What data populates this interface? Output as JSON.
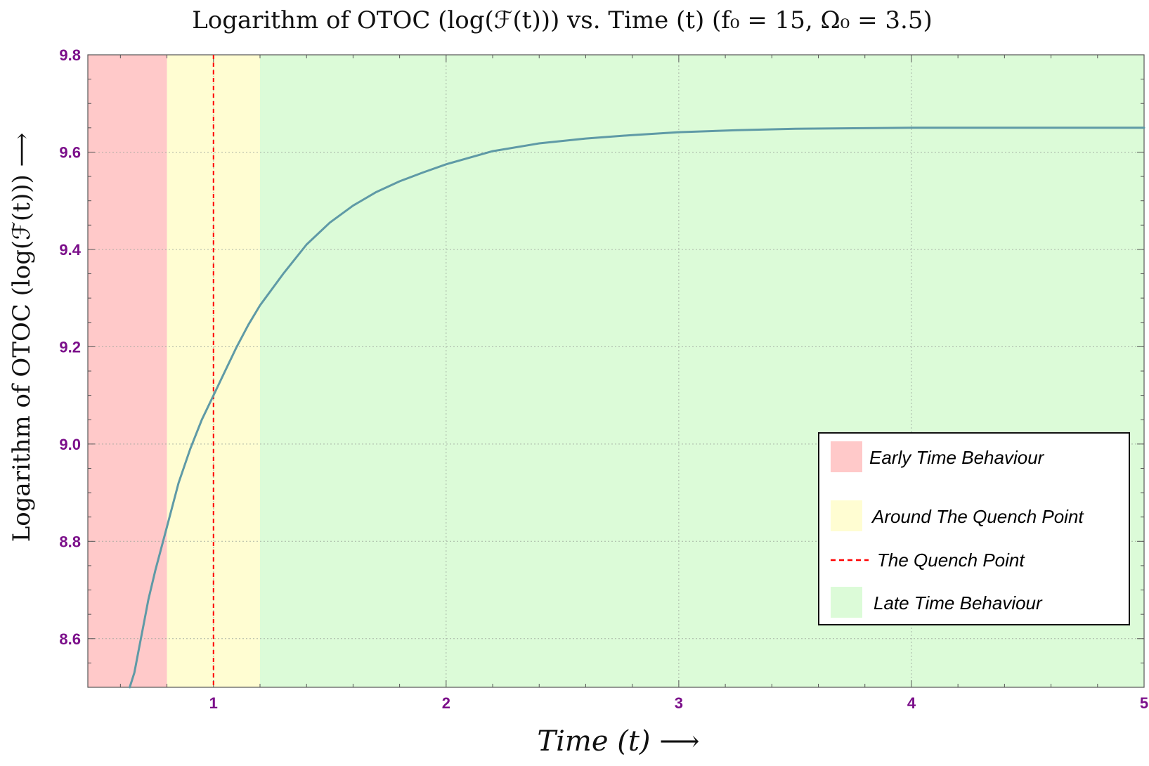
{
  "chart_data": {
    "type": "line",
    "title": "Logarithm of OTOC (log(ℱ(t))) vs. Time (t) (f₀ = 15, Ω₀ = 3.5)",
    "xlabel": "Time (t) ⟶",
    "ylabel": "Logarithm of OTOC (log(ℱ(t))) ⟶",
    "xlim": [
      0.46,
      5.0
    ],
    "ylim": [
      8.5,
      9.8
    ],
    "xticks": [
      "1",
      "2",
      "3",
      "4",
      "5"
    ],
    "xtick_values": [
      1,
      2,
      3,
      4,
      5
    ],
    "yticks": [
      "8.6",
      "8.8",
      "9.0",
      "9.2",
      "9.4",
      "9.6",
      "9.8"
    ],
    "ytick_values": [
      8.6,
      8.8,
      9.0,
      9.2,
      9.4,
      9.6,
      9.8
    ],
    "grid": true,
    "tick_color": "#7b0f8a",
    "regions": [
      {
        "name": "Early Time Behaviour",
        "x_range": [
          0.46,
          0.8
        ],
        "color": "#ffc9c9"
      },
      {
        "name": "Around The Quench Point",
        "x_range": [
          0.8,
          1.2
        ],
        "color": "#fffdd2"
      },
      {
        "name": "Late Time Behaviour",
        "x_range": [
          1.2,
          5.0
        ],
        "color": "#dcfbd8"
      }
    ],
    "quench_point": {
      "name": "The Quench Point",
      "x": 1.0,
      "color": "#ff0000",
      "style": "dashed"
    },
    "series": [
      {
        "color": "#5f9aa6",
        "x": [
          0.64,
          0.66,
          0.68,
          0.7,
          0.72,
          0.75,
          0.8,
          0.85,
          0.9,
          0.95,
          1.0,
          1.05,
          1.1,
          1.15,
          1.2,
          1.3,
          1.4,
          1.5,
          1.6,
          1.7,
          1.8,
          1.9,
          2.0,
          2.2,
          2.4,
          2.6,
          2.8,
          3.0,
          3.25,
          3.5,
          3.75,
          4.0,
          4.25,
          4.5,
          4.75,
          5.0
        ],
        "y": [
          8.5,
          8.53,
          8.58,
          8.63,
          8.68,
          8.74,
          8.83,
          8.92,
          8.99,
          9.05,
          9.1,
          9.15,
          9.2,
          9.245,
          9.285,
          9.35,
          9.41,
          9.455,
          9.49,
          9.518,
          9.54,
          9.558,
          9.575,
          9.602,
          9.618,
          9.628,
          9.635,
          9.641,
          9.645,
          9.648,
          9.649,
          9.65,
          9.65,
          9.65,
          9.65,
          9.65
        ]
      }
    ],
    "legend": {
      "position": "center-right",
      "entries": [
        "Early Time Behaviour",
        "Around The Quench Point",
        "The Quench Point",
        "Late Time Behaviour"
      ]
    }
  }
}
